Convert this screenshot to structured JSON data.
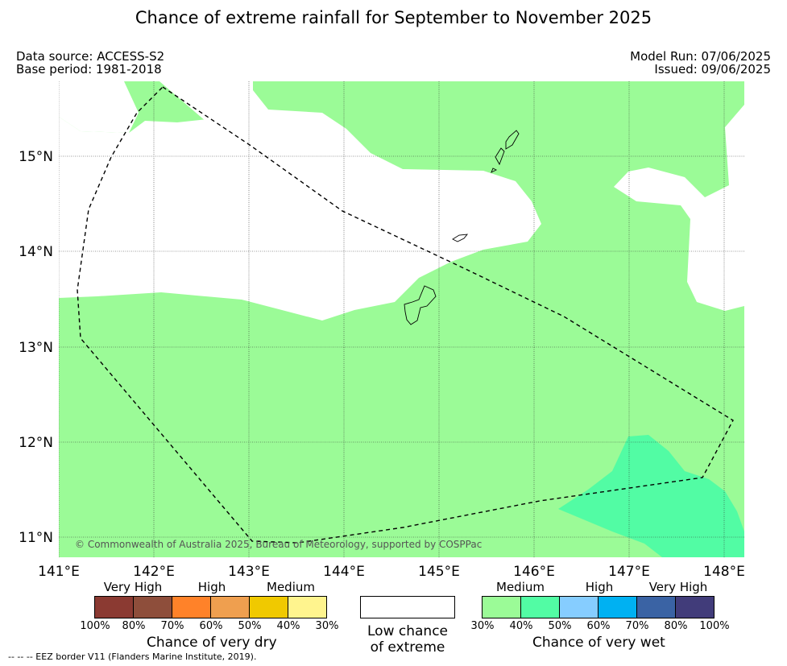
{
  "title": "Chance of extreme rainfall for September to November 2025",
  "data_source": "Data source: ACCESS-S2",
  "base_period": "Base period: 1981-2018",
  "model_run": "Model Run: 07/06/2025",
  "issued": "Issued: 09/06/2025",
  "copyright": "© Commonwealth of Australia 2025, Bureau of Meteorology, supported by COSPPac",
  "map": {
    "lat_labels": [
      "15°N",
      "14°N",
      "13°N",
      "12°N",
      "11°N"
    ],
    "lon_labels": [
      "141°E",
      "142°E",
      "143°E",
      "144°E",
      "145°E",
      "146°E",
      "147°E",
      "148°E"
    ],
    "colors": {
      "medium_wet": "#9bfb97",
      "high_wet_50": "#52fca4",
      "low": "#ffffff",
      "eez_border": "#000000"
    }
  },
  "legend_dry": {
    "categories": [
      "Very High",
      "High",
      "Medium"
    ],
    "colors": [
      "#8b3a32",
      "#8e4e3b",
      "#ff8229",
      "#ef9f4f",
      "#f0c900",
      "#fff48e"
    ],
    "percents": [
      "100%",
      "80%",
      "70%",
      "60%",
      "50%",
      "40%",
      "30%"
    ],
    "caption": "Chance of very dry"
  },
  "legend_low": {
    "caption_line1": "Low chance",
    "caption_line2": "of extreme",
    "color": "#ffffff"
  },
  "legend_wet": {
    "categories": [
      "Medium",
      "High",
      "Very High"
    ],
    "colors": [
      "#9bfb97",
      "#52fca4",
      "#86cdff",
      "#00b1f2",
      "#3a63a4",
      "#413c7a"
    ],
    "percents": [
      "30%",
      "40%",
      "50%",
      "60%",
      "70%",
      "80%",
      "100%"
    ],
    "caption": "Chance of very wet"
  },
  "footnote": "--  --  -- EEZ border V11 (Flanders Marine Institute, 2019)."
}
